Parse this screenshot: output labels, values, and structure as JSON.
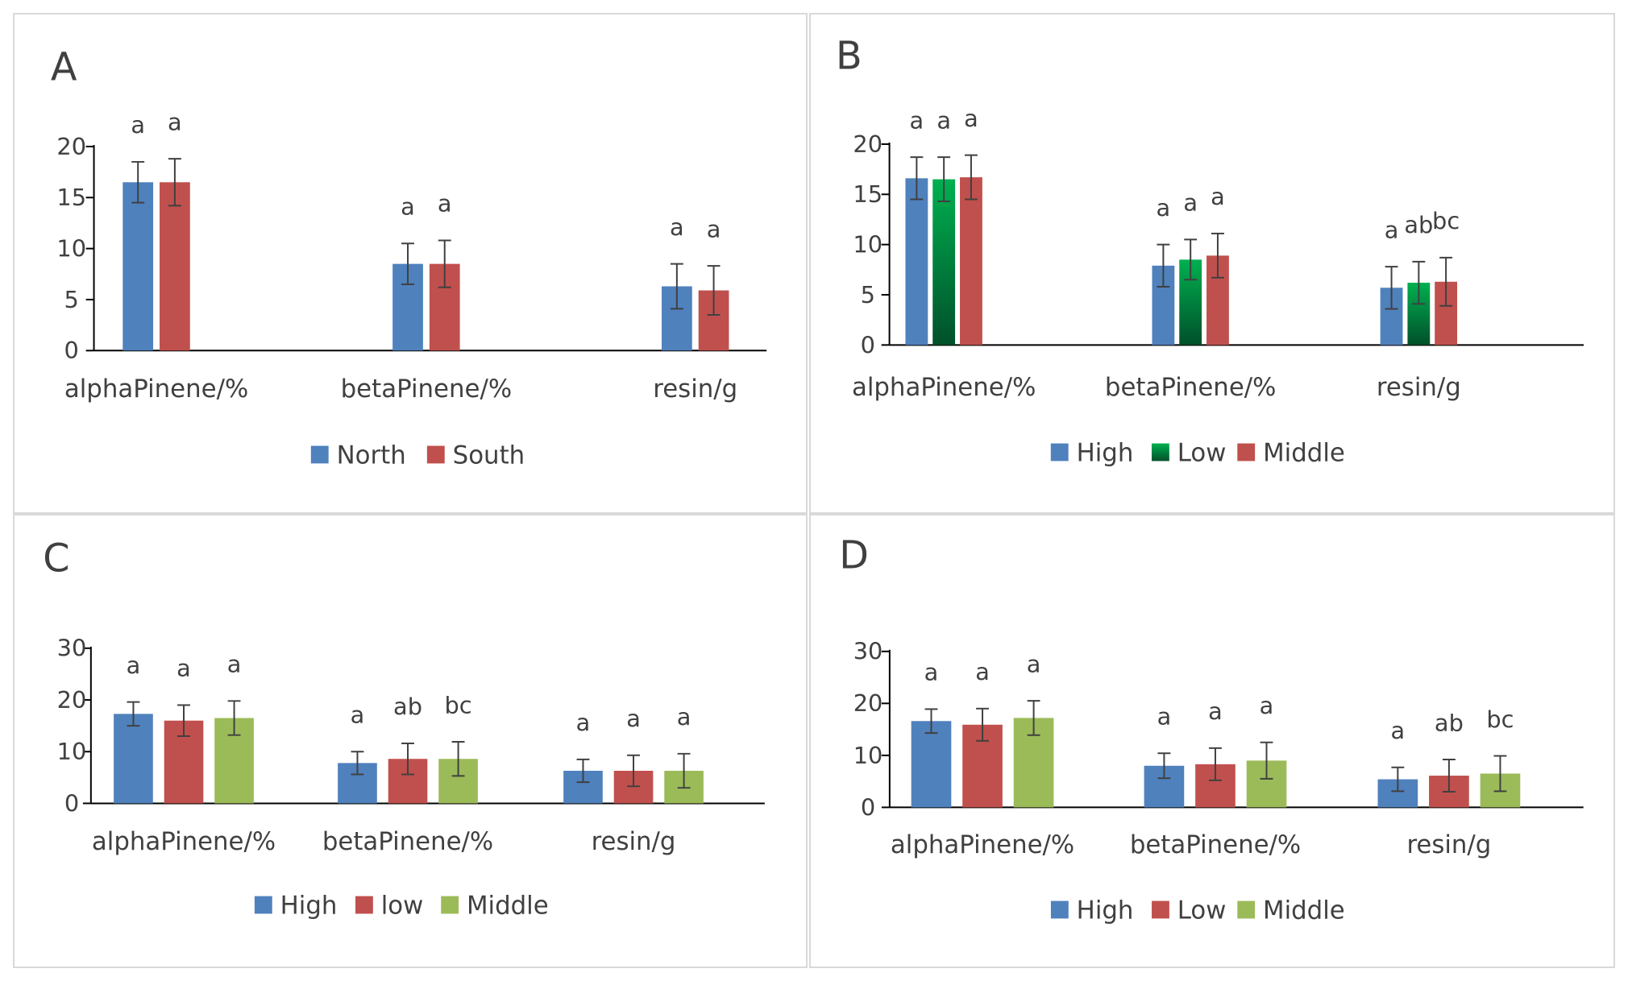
{
  "figure": "Four-panel bar chart of alphaPinene, betaPinene and resin by group",
  "chart_data": [
    {
      "panel": "A",
      "type": "bar",
      "categories": [
        "alphaPinene/%",
        "betaPinene/%",
        "resin/g"
      ],
      "ylim": [
        0,
        20
      ],
      "yticks": [
        "0",
        "5",
        "10",
        "15",
        "20"
      ],
      "series": [
        {
          "name": "North",
          "color": "#4f81bd",
          "values": [
            16.5,
            8.5,
            6.3
          ],
          "errors": [
            2.0,
            2.0,
            2.2
          ],
          "labels": [
            "a",
            "a",
            "a"
          ]
        },
        {
          "name": "South",
          "color": "#c0504d",
          "values": [
            16.5,
            8.5,
            5.9
          ],
          "errors": [
            2.3,
            2.3,
            2.4
          ],
          "labels": [
            "a",
            "a",
            "a"
          ]
        }
      ]
    },
    {
      "panel": "B",
      "type": "bar",
      "categories": [
        "alphaPinene/%",
        "betaPinene/%",
        "resin/g"
      ],
      "ylim": [
        0,
        20
      ],
      "yticks": [
        "0",
        "5",
        "10",
        "15",
        "20"
      ],
      "series": [
        {
          "name": "High",
          "color": "#4f81bd",
          "values": [
            16.6,
            7.9,
            5.7
          ],
          "errors": [
            2.1,
            2.1,
            2.1
          ],
          "labels": [
            "a",
            "a",
            "a"
          ]
        },
        {
          "name": "Low",
          "color": "#00b050",
          "gradient": "#00502a",
          "values": [
            16.5,
            8.5,
            6.2
          ],
          "errors": [
            2.2,
            2.0,
            2.1
          ],
          "labels": [
            "a",
            "a",
            "ab"
          ]
        },
        {
          "name": "Middle",
          "color": "#c0504d",
          "values": [
            16.7,
            8.9,
            6.3
          ],
          "errors": [
            2.2,
            2.2,
            2.4
          ],
          "labels": [
            "a",
            "a",
            "bc"
          ]
        }
      ]
    },
    {
      "panel": "C",
      "type": "bar",
      "categories": [
        "alphaPinene/%",
        "betaPinene/%",
        "resin/g"
      ],
      "ylim": [
        0,
        30
      ],
      "yticks": [
        "0",
        "10",
        "20",
        "30"
      ],
      "series": [
        {
          "name": "High",
          "color": "#4f81bd",
          "values": [
            17.3,
            7.8,
            6.3
          ],
          "errors": [
            2.3,
            2.2,
            2.2
          ],
          "labels": [
            "a",
            "a",
            "a"
          ]
        },
        {
          "name": "low",
          "color": "#c0504d",
          "values": [
            16.0,
            8.6,
            6.3
          ],
          "errors": [
            3.0,
            3.0,
            3.0
          ],
          "labels": [
            "a",
            "ab",
            "a"
          ]
        },
        {
          "name": "Middle",
          "color": "#9bbb59",
          "values": [
            16.5,
            8.6,
            6.3
          ],
          "errors": [
            3.3,
            3.3,
            3.3
          ],
          "labels": [
            "a",
            "bc",
            "a"
          ]
        }
      ]
    },
    {
      "panel": "D",
      "type": "bar",
      "categories": [
        "alphaPinene/%",
        "betaPinene/%",
        "resin/g"
      ],
      "ylim": [
        0,
        30
      ],
      "yticks": [
        "0",
        "10",
        "20",
        "30"
      ],
      "series": [
        {
          "name": "High",
          "color": "#4f81bd",
          "values": [
            16.6,
            8.0,
            5.4
          ],
          "errors": [
            2.3,
            2.4,
            2.3
          ],
          "labels": [
            "a",
            "a",
            "a"
          ]
        },
        {
          "name": "Low",
          "color": "#c0504d",
          "values": [
            15.9,
            8.3,
            6.1
          ],
          "errors": [
            3.1,
            3.1,
            3.1
          ],
          "labels": [
            "a",
            "a",
            "ab"
          ]
        },
        {
          "name": "Middle",
          "color": "#9bbb59",
          "values": [
            17.2,
            9.0,
            6.5
          ],
          "errors": [
            3.3,
            3.5,
            3.4
          ],
          "labels": [
            "a",
            "a",
            "bc"
          ]
        }
      ]
    }
  ]
}
